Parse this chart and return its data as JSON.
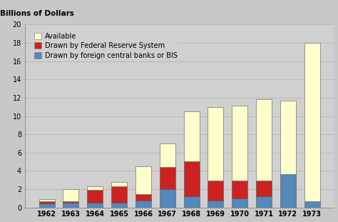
{
  "years": [
    "1962",
    "1963",
    "1964",
    "1965",
    "1966",
    "1967",
    "1968",
    "1969",
    "1970",
    "1971",
    "1972",
    "1973"
  ],
  "foreign_central_banks": [
    0.45,
    0.55,
    0.5,
    0.55,
    0.75,
    2.0,
    1.25,
    0.75,
    1.0,
    1.2,
    3.6,
    0.65
  ],
  "federal_reserve": [
    0.25,
    0.15,
    1.4,
    1.75,
    0.7,
    2.4,
    3.8,
    2.2,
    1.9,
    1.7,
    0.0,
    0.0
  ],
  "available": [
    0.2,
    1.3,
    0.4,
    0.5,
    3.05,
    2.6,
    5.45,
    8.05,
    8.2,
    8.9,
    8.1,
    17.35
  ],
  "colors": {
    "available": "#ffffcc",
    "federal_reserve": "#cc2222",
    "foreign_central_banks": "#5588bb"
  },
  "legend_labels": [
    "Available",
    "Drawn by Federal Reserve System",
    "Drawn by foreign central banks or BIS"
  ],
  "top_label": "Billions of Dollars",
  "ylim": [
    0,
    20
  ],
  "yticks": [
    0,
    2,
    4,
    6,
    8,
    10,
    12,
    14,
    16,
    18,
    20
  ],
  "background_color": "#c8c8c8",
  "plot_background_color": "#d0d0d0",
  "bar_edge_color": "#555555",
  "bar_width": 0.65,
  "grid_color": "#bbbbbb",
  "label_fontsize": 7.5,
  "legend_fontsize": 7,
  "tick_fontsize": 7
}
